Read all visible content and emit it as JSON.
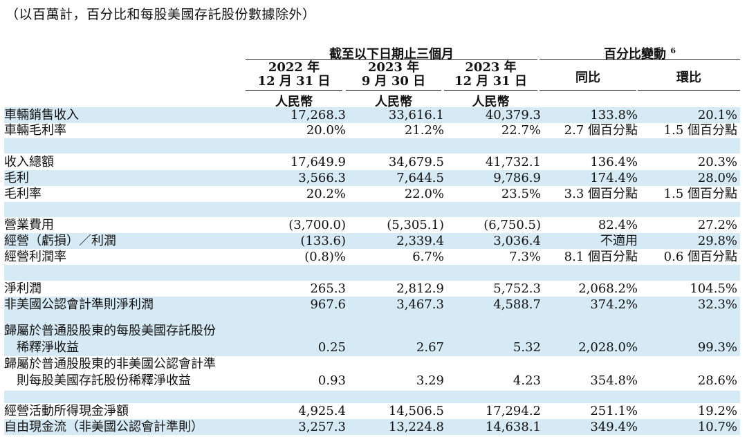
{
  "note": "（以百萬計，百分比和每股美國存託股份數據除外）",
  "header": {
    "period_group": "截至以下日期止三個月",
    "change_group": "百分比變動",
    "change_sup": "6",
    "col1": {
      "year": "2022 年",
      "date": "12 月 31 日",
      "currency": "人民幣"
    },
    "col2": {
      "year": "2023 年",
      "date": "9 月 30 日",
      "currency": "人民幣"
    },
    "col3": {
      "year": "2023 年",
      "date": "12 月 31 日",
      "currency": "人民幣"
    },
    "yoy": "同比",
    "qoq": "環比"
  },
  "rows": [
    {
      "label": "車輛銷售收入",
      "v": [
        "17,268.3",
        "33,616.1",
        "40,379.3",
        "133.8%",
        "20.1%"
      ]
    },
    {
      "label": "車輛毛利率",
      "v": [
        "20.0%",
        "21.2%",
        "22.7%",
        "2.7 個百分點",
        "1.5 個百分點"
      ]
    },
    {
      "label": "收入總額",
      "v": [
        "17,649.9",
        "34,679.5",
        "41,732.1",
        "136.4%",
        "20.3%"
      ]
    },
    {
      "label": "毛利",
      "v": [
        "3,566.3",
        "7,644.5",
        "9,786.9",
        "174.4%",
        "28.0%"
      ]
    },
    {
      "label": "毛利率",
      "v": [
        "20.2%",
        "22.0%",
        "23.5%",
        "3.3 個百分點",
        "1.5 個百分點"
      ]
    },
    {
      "label": "營業費用",
      "v": [
        "(3,700.0)",
        "(5,305.1)",
        "(6,750.5)",
        "82.4%",
        "27.2%"
      ]
    },
    {
      "label": "經營（虧損）／利潤",
      "v": [
        "(133.6)",
        "2,339.4",
        "3,036.4",
        "不適用",
        "29.8%"
      ]
    },
    {
      "label": "經營利潤率",
      "v": [
        "(0.8)%",
        "6.7%",
        "7.3%",
        "8.1 個百分點",
        "0.6 個百分點"
      ]
    },
    {
      "label": "淨利潤",
      "v": [
        "265.3",
        "2,812.9",
        "5,752.3",
        "2,068.2%",
        "104.5%"
      ]
    },
    {
      "label": "非美國公認會計準則淨利潤",
      "v": [
        "967.6",
        "3,467.3",
        "4,588.7",
        "374.2%",
        "32.3%"
      ]
    },
    {
      "label1": "歸屬於普通股股東的每股美國存託股份",
      "label2": "稀釋淨收益",
      "v": [
        "0.25",
        "2.67",
        "5.32",
        "2,028.0%",
        "99.3%"
      ]
    },
    {
      "label1": "歸屬於普通股股東的非美國公認會計準",
      "label2": "則每股美國存託股份稀釋淨收益",
      "v": [
        "0.93",
        "3.29",
        "4.23",
        "354.8%",
        "28.6%"
      ]
    },
    {
      "label": "經營活動所得現金淨額",
      "v": [
        "4,925.4",
        "14,506.5",
        "17,294.2",
        "251.1%",
        "19.2%"
      ]
    },
    {
      "label": "自由現金流（非美國公認會計準則）",
      "v": [
        "3,257.3",
        "13,224.8",
        "14,638.1",
        "349.4%",
        "10.7%"
      ]
    }
  ]
}
